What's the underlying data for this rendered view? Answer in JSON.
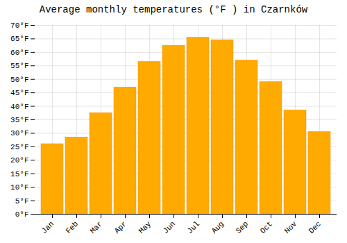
{
  "chart_data": {
    "type": "bar",
    "title": "Average monthly temperatures (°F ) in Czarnków",
    "categories": [
      "Jan",
      "Feb",
      "Mar",
      "Apr",
      "May",
      "Jun",
      "Jul",
      "Aug",
      "Sep",
      "Oct",
      "Nov",
      "Dec"
    ],
    "values": [
      26,
      28.5,
      37.5,
      47,
      56.5,
      62.5,
      65.5,
      64.5,
      57,
      49,
      38.5,
      30.5
    ],
    "color": "#FFAA00",
    "ylim": [
      0,
      70
    ],
    "yticks": [
      {
        "value": 0,
        "label": "0°F"
      },
      {
        "value": 5,
        "label": "5°F"
      },
      {
        "value": 10,
        "label": "10°F"
      },
      {
        "value": 15,
        "label": "15°F"
      },
      {
        "value": 20,
        "label": "20°F"
      },
      {
        "value": 25,
        "label": "25°F"
      },
      {
        "value": 30,
        "label": "30°F"
      },
      {
        "value": 35,
        "label": "35°F"
      },
      {
        "value": 40,
        "label": "40°F"
      },
      {
        "value": 45,
        "label": "45°F"
      },
      {
        "value": 50,
        "label": "50°F"
      },
      {
        "value": 55,
        "label": "55°F"
      },
      {
        "value": 60,
        "label": "60°F"
      },
      {
        "value": 65,
        "label": "65°F"
      },
      {
        "value": 70,
        "label": "70°F"
      }
    ],
    "grid": true
  }
}
